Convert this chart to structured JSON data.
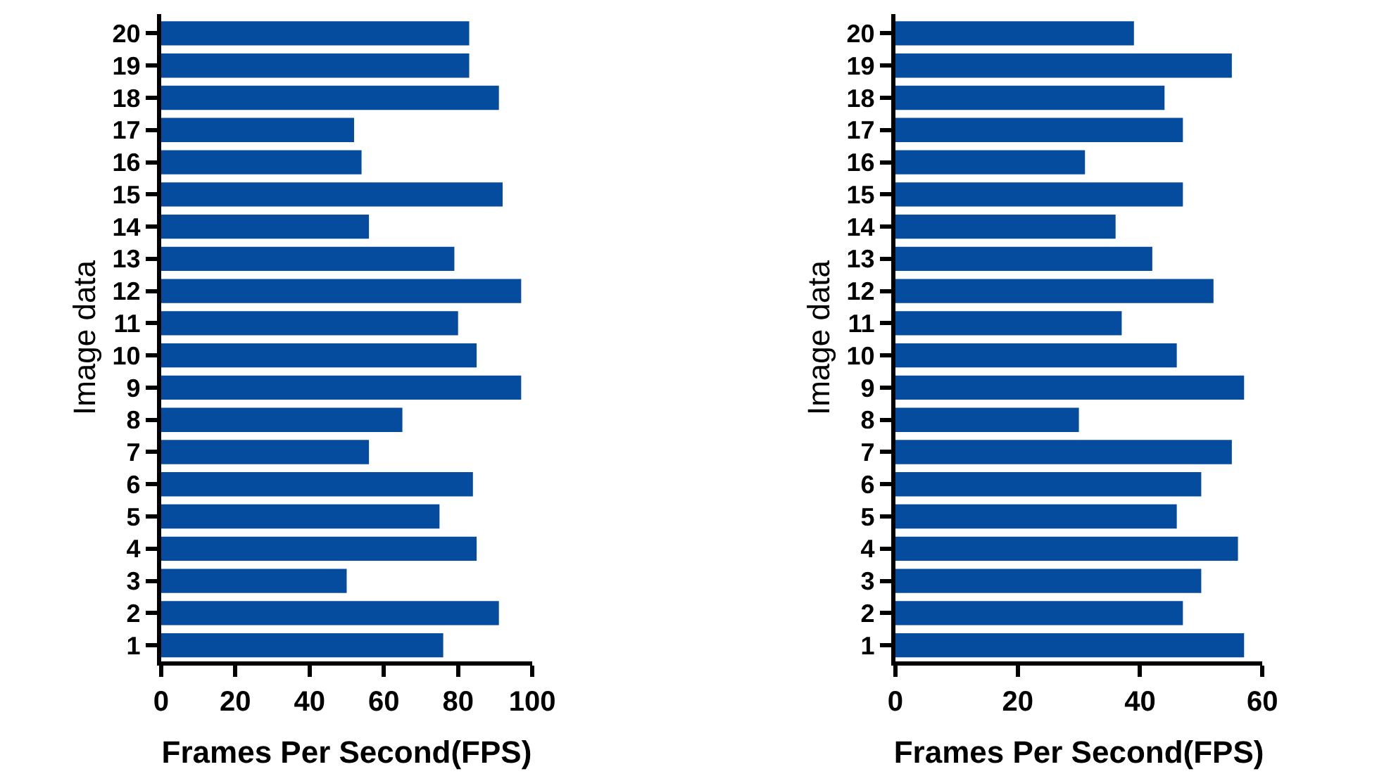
{
  "chart_data": [
    {
      "type": "bar",
      "orientation": "horizontal",
      "categories": [
        "20",
        "19",
        "18",
        "17",
        "16",
        "15",
        "14",
        "13",
        "12",
        "11",
        "10",
        "9",
        "8",
        "7",
        "6",
        "5",
        "4",
        "3",
        "2",
        "1"
      ],
      "values": [
        83,
        83,
        91,
        52,
        54,
        92,
        56,
        79,
        97,
        80,
        85,
        97,
        65,
        56,
        84,
        75,
        85,
        50,
        91,
        76
      ],
      "color": "#054c9f",
      "xlim": [
        0,
        100
      ],
      "xticks": [
        0,
        20,
        40,
        60,
        80,
        100
      ],
      "xlabel": "Frames Per Second(FPS)",
      "ylabel": "Image data"
    },
    {
      "type": "bar",
      "orientation": "horizontal",
      "categories": [
        "20",
        "19",
        "18",
        "17",
        "16",
        "15",
        "14",
        "13",
        "12",
        "11",
        "10",
        "9",
        "8",
        "7",
        "6",
        "5",
        "4",
        "3",
        "2",
        "1"
      ],
      "values": [
        39,
        55,
        44,
        47,
        31,
        47,
        36,
        42,
        52,
        37,
        46,
        57,
        30,
        55,
        50,
        46,
        56,
        50,
        47,
        57
      ],
      "color": "#054c9f",
      "xlim": [
        0,
        60
      ],
      "xticks": [
        0,
        20,
        40,
        60
      ],
      "xlabel": "Frames Per Second(FPS)",
      "ylabel": "Image data"
    }
  ]
}
